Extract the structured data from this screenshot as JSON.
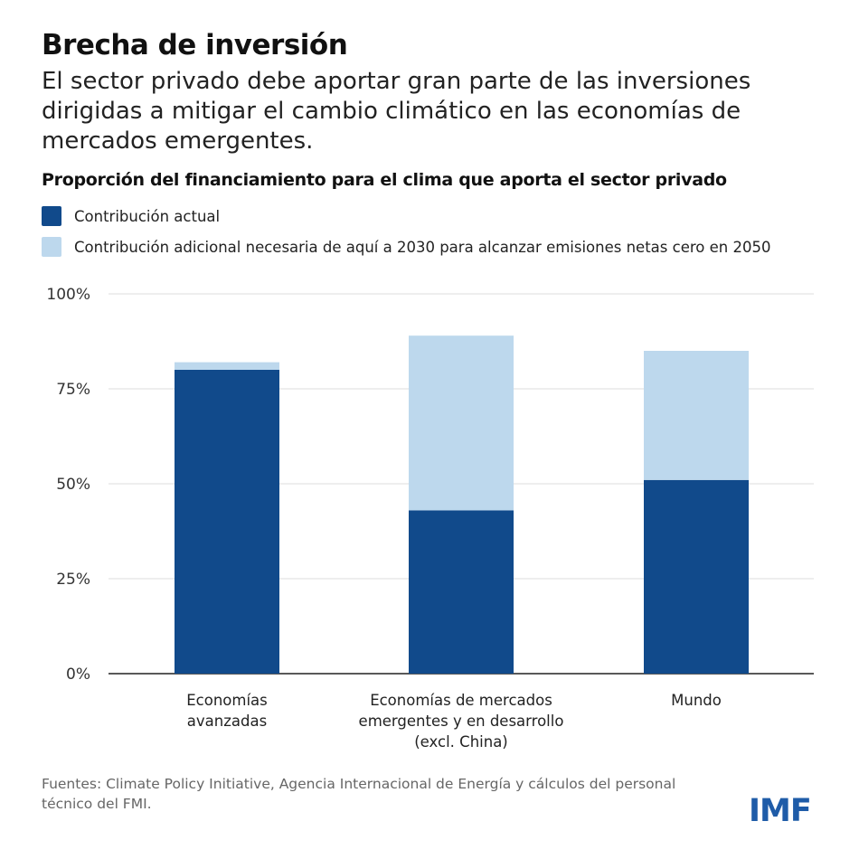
{
  "title": "Brecha de inversión",
  "subtitle": "El sector privado debe aportar gran parte de las inversiones dirigidas a mitigar el cambio climático en las economías de mercados emergentes.",
  "source": "Fuentes: Climate Policy Initiative, Agencia Internacional de Energía y cálculos del personal técnico del FMI.",
  "logo": "IMF",
  "chart_data": {
    "type": "bar",
    "stacked": true,
    "title": "Proporción del financiamiento para el clima que aporta el sector privado",
    "categories": [
      [
        "Economías",
        "avanzadas"
      ],
      [
        "Economías de mercados",
        "emergentes y en desarrollo",
        "(excl. China)"
      ],
      [
        "Mundo"
      ]
    ],
    "series": [
      {
        "name": "Contribución actual",
        "values": [
          80,
          43,
          51
        ],
        "color": "#114a8b"
      },
      {
        "name": "Contribución adicional necesaria de aquí a 2030 para alcanzar emisiones netas cero en 2050",
        "values": [
          2,
          46,
          34
        ],
        "color": "#bdd8ed"
      }
    ],
    "ylim": [
      0,
      100
    ],
    "yticks": [
      "0%",
      "25%",
      "50%",
      "75%",
      "100%"
    ],
    "grid": true,
    "legend": "top-left"
  }
}
